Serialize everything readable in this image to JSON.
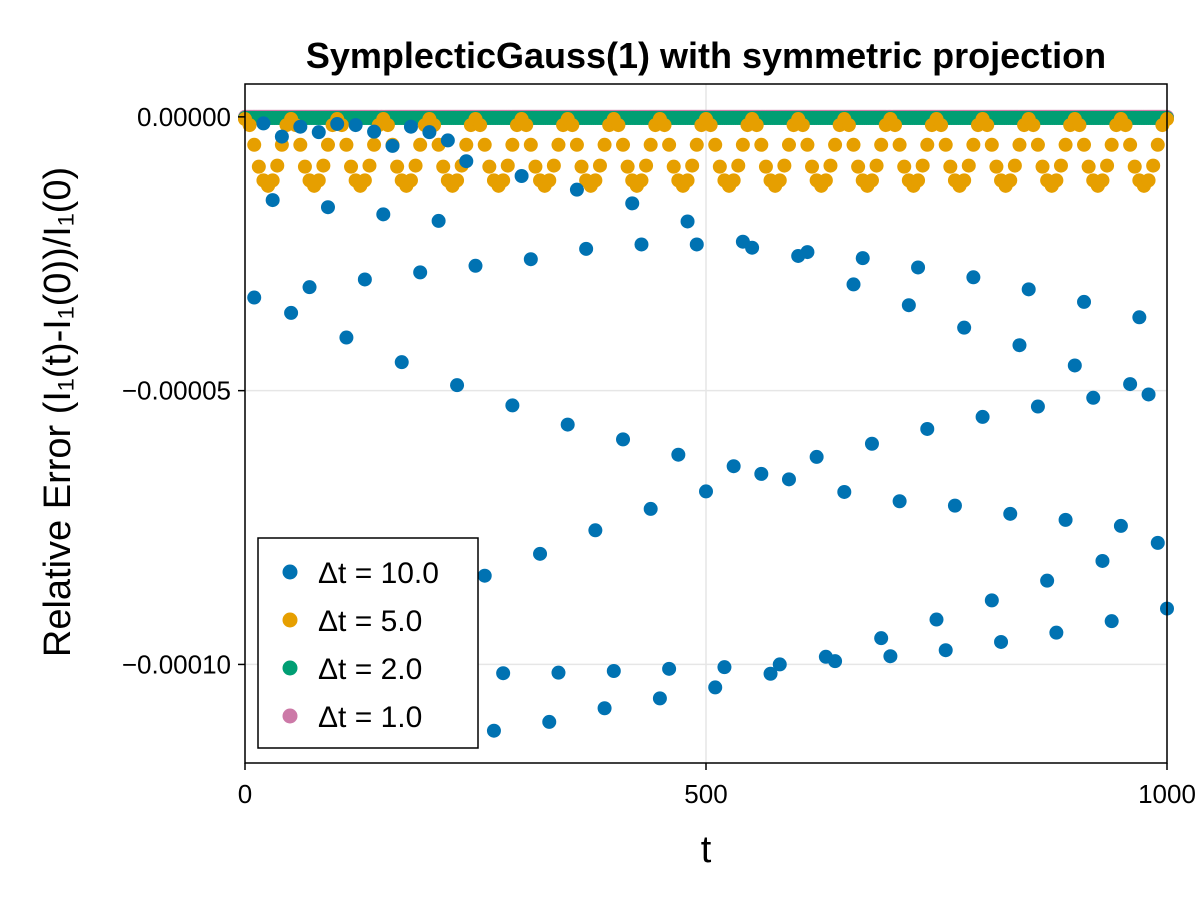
{
  "chart_data": {
    "type": "scatter",
    "title": "SymplecticGauss(1) with symmetric projection",
    "xlabel": "t",
    "ylabel": "Relative Error (I₁(t)-I₁(0))/I₁(0)",
    "xlim": [
      0,
      1000
    ],
    "ylim": [
      -0.000118,
      6e-06
    ],
    "x_ticks": [
      0,
      500,
      1000
    ],
    "x_tick_labels": [
      "0",
      "500",
      "1000"
    ],
    "y_ticks": [
      0,
      -5e-05,
      -0.0001
    ],
    "y_tick_labels": [
      "0.00000",
      "−0.00005",
      "−0.00010"
    ],
    "grid": true,
    "legend_position": "bottom-left",
    "series": [
      {
        "name": "Δt = 10.0",
        "color": "#0072b2",
        "x": [
          10,
          20,
          30,
          40,
          50,
          60,
          70,
          80,
          90,
          100,
          110,
          120,
          130,
          140,
          150,
          160,
          170,
          180,
          190,
          200,
          210,
          220,
          230,
          240,
          250,
          260,
          270,
          280,
          290,
          300,
          310,
          320,
          330,
          340,
          350,
          360,
          370,
          380,
          390,
          400,
          410,
          420,
          430,
          440,
          450,
          460,
          470,
          480,
          490,
          500,
          510,
          520,
          530,
          540,
          550,
          560,
          570,
          580,
          590,
          600,
          610,
          620,
          630,
          640,
          650,
          660,
          670,
          680,
          690,
          700,
          710,
          720,
          730,
          740,
          750,
          760,
          770,
          780,
          790,
          800,
          810,
          820,
          830,
          840,
          850,
          860,
          870,
          880,
          890,
          900,
          910,
          920,
          930,
          940,
          950,
          960,
          970,
          980,
          990,
          1000
        ],
        "y": [
          -3.3e-05,
          -1.2e-06,
          -1.52e-05,
          -3.6e-06,
          -3.58e-05,
          -1.8e-06,
          -3.11e-05,
          -2.8e-06,
          -1.65e-05,
          -1.3e-06,
          -4.03e-05,
          -1.5e-06,
          -2.97e-05,
          -2.7e-06,
          -1.78e-05,
          -5.3e-06,
          -4.48e-05,
          -1.8e-06,
          -2.84e-05,
          -2.8e-06,
          -1.9e-05,
          -4.3e-06,
          -4.9e-05,
          -8.1e-06,
          -2.72e-05,
          -8.38e-05,
          -0.0001121,
          -0.0001016,
          -5.27e-05,
          -1.08e-05,
          -2.6e-05,
          -7.98e-05,
          -0.0001105,
          -0.0001015,
          -5.62e-05,
          -1.33e-05,
          -2.41e-05,
          -7.55e-05,
          -0.000108,
          -0.0001012,
          -5.89e-05,
          -1.58e-05,
          -2.33e-05,
          -7.16e-05,
          -0.0001062,
          -0.0001008,
          -6.17e-05,
          -1.91e-05,
          -2.33e-05,
          -6.84e-05,
          -0.0001042,
          -0.0001005,
          -6.38e-05,
          -2.28e-05,
          -2.39e-05,
          -6.52e-05,
          -0.0001017,
          -0.0001,
          -6.62e-05,
          -2.54e-05,
          -2.47e-05,
          -6.21e-05,
          -9.86e-05,
          -9.94e-05,
          -6.85e-05,
          -3.06e-05,
          -2.58e-05,
          -5.97e-05,
          -9.52e-05,
          -9.85e-05,
          -7.02e-05,
          -3.44e-05,
          -2.75e-05,
          -5.7e-05,
          -9.18e-05,
          -9.74e-05,
          -7.1e-05,
          -3.85e-05,
          -2.93e-05,
          -5.48e-05,
          -8.83e-05,
          -9.59e-05,
          -7.25e-05,
          -4.17e-05,
          -3.15e-05,
          -5.29e-05,
          -8.47e-05,
          -9.42e-05,
          -7.36e-05,
          -4.54e-05,
          -3.38e-05,
          -5.13e-05,
          -8.11e-05,
          -9.21e-05,
          -7.47e-05,
          -4.88e-05,
          -3.66e-05,
          -5.07e-05,
          -7.78e-05,
          -8.98e-05
        ]
      },
      {
        "name": "Δt = 5.0",
        "color": "#e69f00",
        "x": [
          0,
          5,
          10,
          15,
          20,
          25,
          30,
          35,
          40,
          45,
          50,
          55,
          60,
          65,
          70,
          75,
          80,
          85,
          90,
          95,
          100,
          105,
          110,
          115,
          120,
          125,
          130,
          135,
          140,
          145,
          150,
          155,
          160,
          165,
          170,
          175,
          180,
          185,
          190,
          195,
          200,
          205,
          210,
          215,
          220,
          225,
          230,
          235,
          240,
          245,
          250,
          255,
          260,
          265,
          270,
          275,
          280,
          285,
          290,
          295,
          300,
          305,
          310,
          315,
          320,
          325,
          330,
          335,
          340,
          345,
          350,
          355,
          360,
          365,
          370,
          375,
          380,
          385,
          390,
          395,
          400,
          405,
          410,
          415,
          420,
          425,
          430,
          435,
          440,
          445,
          450,
          455,
          460,
          465,
          470,
          475,
          480,
          485,
          490,
          495,
          500,
          505,
          510,
          515,
          520,
          525,
          530,
          535,
          540,
          545,
          550,
          555,
          560,
          565,
          570,
          575,
          580,
          585,
          590,
          595,
          600,
          605,
          610,
          615,
          620,
          625,
          630,
          635,
          640,
          645,
          650,
          655,
          660,
          665,
          670,
          675,
          680,
          685,
          690,
          695,
          700,
          705,
          710,
          715,
          720,
          725,
          730,
          735,
          740,
          745,
          750,
          755,
          760,
          765,
          770,
          775,
          780,
          785,
          790,
          795,
          800,
          805,
          810,
          815,
          820,
          825,
          830,
          835,
          840,
          845,
          850,
          855,
          860,
          865,
          870,
          875,
          880,
          885,
          890,
          895,
          900,
          905,
          910,
          915,
          920,
          925,
          930,
          935,
          940,
          945,
          950,
          955,
          960,
          965,
          970,
          975,
          980,
          985,
          990,
          995,
          1000
        ],
        "y": [
          -4e-07,
          -1.5e-06,
          -5.1e-06,
          -9.1e-06,
          -1.16e-05,
          -1.26e-05,
          -1.16e-05,
          -8.9e-06,
          -5.1e-06,
          -1.5e-06,
          -4e-07,
          -1.5e-06,
          -5.1e-06,
          -9.1e-06,
          -1.16e-05,
          -1.26e-05,
          -1.16e-05,
          -8.9e-06,
          -5.1e-06,
          -1.5e-06,
          -4e-07,
          -1.5e-06,
          -5.1e-06,
          -9.1e-06,
          -1.16e-05,
          -1.26e-05,
          -1.16e-05,
          -8.9e-06,
          -5.1e-06,
          -1.5e-06,
          -4e-07,
          -1.5e-06,
          -5.1e-06,
          -9.1e-06,
          -1.16e-05,
          -1.26e-05,
          -1.16e-05,
          -8.9e-06,
          -5.1e-06,
          -1.5e-06,
          -4e-07,
          -1.5e-06,
          -5.1e-06,
          -9.1e-06,
          -1.16e-05,
          -1.26e-05,
          -1.16e-05,
          -8.9e-06,
          -5.1e-06,
          -1.5e-06,
          -4e-07,
          -1.5e-06,
          -5.1e-06,
          -9.1e-06,
          -1.16e-05,
          -1.26e-05,
          -1.16e-05,
          -8.9e-06,
          -5.1e-06,
          -1.5e-06,
          -4e-07,
          -1.5e-06,
          -5.1e-06,
          -9.1e-06,
          -1.16e-05,
          -1.26e-05,
          -1.16e-05,
          -8.9e-06,
          -5.1e-06,
          -1.5e-06,
          -4e-07,
          -1.5e-06,
          -5.1e-06,
          -9.1e-06,
          -1.16e-05,
          -1.26e-05,
          -1.16e-05,
          -8.9e-06,
          -5.1e-06,
          -1.5e-06,
          -4e-07,
          -1.5e-06,
          -5.1e-06,
          -9.1e-06,
          -1.16e-05,
          -1.26e-05,
          -1.16e-05,
          -8.9e-06,
          -5.1e-06,
          -1.5e-06,
          -4e-07,
          -1.5e-06,
          -5.1e-06,
          -9.1e-06,
          -1.16e-05,
          -1.26e-05,
          -1.16e-05,
          -8.9e-06,
          -5.1e-06,
          -1.5e-06,
          -4e-07,
          -1.5e-06,
          -5.1e-06,
          -9.1e-06,
          -1.16e-05,
          -1.26e-05,
          -1.16e-05,
          -8.9e-06,
          -5.1e-06,
          -1.5e-06,
          -4e-07,
          -1.5e-06,
          -5.1e-06,
          -9.1e-06,
          -1.16e-05,
          -1.26e-05,
          -1.16e-05,
          -8.9e-06,
          -5.1e-06,
          -1.5e-06,
          -4e-07,
          -1.5e-06,
          -5.1e-06,
          -9.1e-06,
          -1.16e-05,
          -1.26e-05,
          -1.16e-05,
          -8.9e-06,
          -5.1e-06,
          -1.5e-06,
          -4e-07,
          -1.5e-06,
          -5.1e-06,
          -9.1e-06,
          -1.16e-05,
          -1.26e-05,
          -1.16e-05,
          -8.9e-06,
          -5.1e-06,
          -1.5e-06,
          -4e-07,
          -1.5e-06,
          -5.1e-06,
          -9.1e-06,
          -1.16e-05,
          -1.26e-05,
          -1.16e-05,
          -8.9e-06,
          -5.1e-06,
          -1.5e-06,
          -4e-07,
          -1.5e-06,
          -5.1e-06,
          -9.1e-06,
          -1.16e-05,
          -1.26e-05,
          -1.16e-05,
          -8.9e-06,
          -5.1e-06,
          -1.5e-06,
          -4e-07,
          -1.5e-06,
          -5.1e-06,
          -9.1e-06,
          -1.16e-05,
          -1.26e-05,
          -1.16e-05,
          -8.9e-06,
          -5.1e-06,
          -1.5e-06,
          -4e-07,
          -1.5e-06,
          -5.1e-06,
          -9.1e-06,
          -1.16e-05,
          -1.26e-05,
          -1.16e-05,
          -8.9e-06,
          -5.1e-06,
          -1.5e-06,
          -4e-07,
          -1.5e-06,
          -5.1e-06,
          -9.1e-06,
          -1.16e-05,
          -1.26e-05,
          -1.16e-05,
          -8.9e-06,
          -5.1e-06,
          -1.5e-06,
          -4e-07,
          -1.5e-06,
          -5.1e-06,
          -9.1e-06,
          -1.16e-05,
          -1.26e-05,
          -1.16e-05,
          -8.9e-06,
          -5.1e-06,
          -1.5e-06,
          -4e-07
        ]
      },
      {
        "name": "Δt = 2.0",
        "color": "#009e73",
        "x_range": [
          0,
          1000,
          2
        ],
        "y_constant": -2e-07
      },
      {
        "name": "Δt = 1.0",
        "color": "#cc79a7",
        "x_range": [
          0,
          1000,
          1
        ],
        "y_constant": 0
      }
    ]
  }
}
